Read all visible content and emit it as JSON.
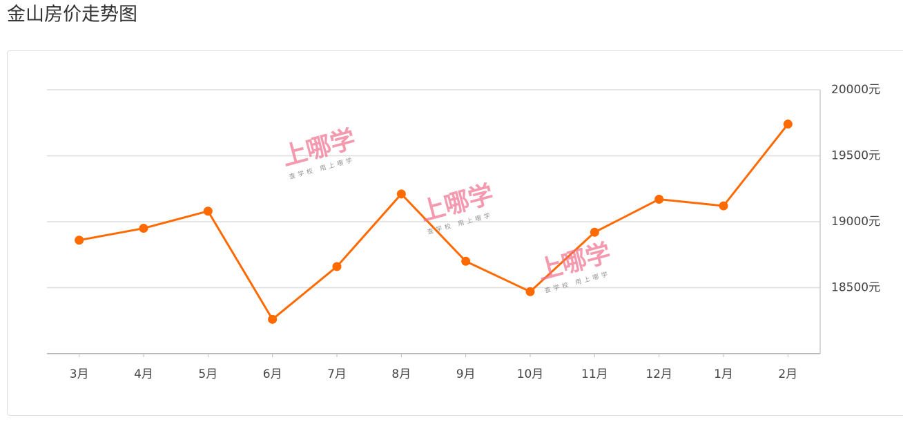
{
  "chart_data": {
    "type": "line",
    "title": "金山房价走势图",
    "categories": [
      "3月",
      "4月",
      "5月",
      "6月",
      "7月",
      "8月",
      "9月",
      "10月",
      "11月",
      "12月",
      "1月",
      "2月"
    ],
    "series": [
      {
        "name": "房价",
        "color": "#ff6a00",
        "values": [
          18860,
          18950,
          19080,
          18260,
          18660,
          19210,
          18700,
          18470,
          18920,
          19170,
          19120,
          19740
        ]
      }
    ],
    "ylim": [
      18000,
      20000
    ],
    "yticks": [
      {
        "value": 18500,
        "label": "18500元"
      },
      {
        "value": 19000,
        "label": "19000元"
      },
      {
        "value": 19500,
        "label": "19500元"
      },
      {
        "value": 20000,
        "label": "20000元"
      }
    ],
    "grid": true,
    "watermark": {
      "title": "上哪学",
      "subtitle": "查学校 用上哪学"
    }
  }
}
